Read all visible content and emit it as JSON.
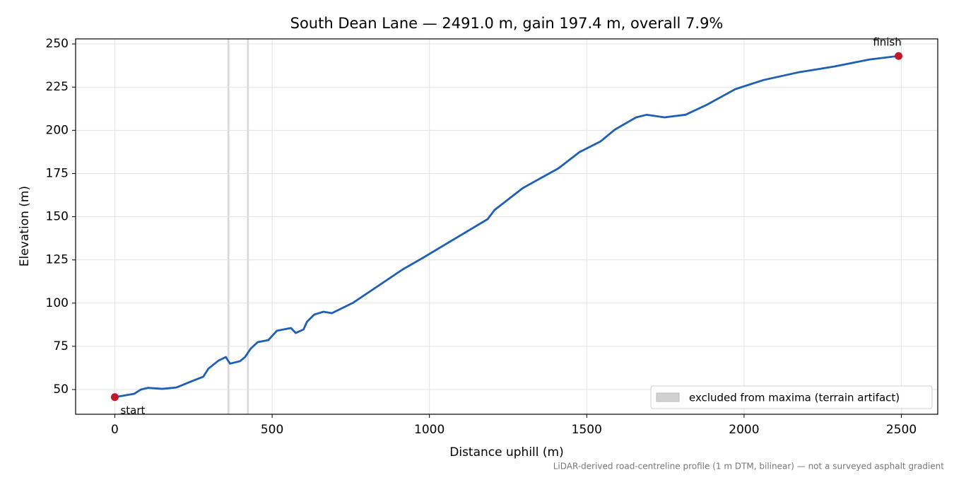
{
  "chart_data": {
    "type": "line",
    "title": "South Dean Lane — 2491.0 m, gain 197.4 m, overall 7.9%",
    "x_label": "Distance uphill (m)",
    "y_label": "Elevation (m)",
    "note": "LiDAR-derived road-centreline profile (1 m DTM, bilinear) — not a surveyed asphalt gradient",
    "x": [
      0,
      61,
      83,
      106,
      151,
      196,
      240,
      281,
      297,
      330,
      353,
      366,
      398,
      414,
      432,
      454,
      488,
      515,
      560,
      575,
      600,
      611,
      634,
      663,
      690,
      758,
      915,
      982,
      1185,
      1207,
      1297,
      1410,
      1477,
      1544,
      1590,
      1657,
      1691,
      1747,
      1814,
      1882,
      1972,
      2062,
      2174,
      2286,
      2399,
      2491
    ],
    "values": [
      45.6,
      47.5,
      50,
      51,
      50.4,
      51.2,
      54.5,
      57.4,
      62,
      66.8,
      68.8,
      65,
      66.4,
      68.8,
      73.7,
      77.4,
      78.6,
      84,
      85.6,
      82.7,
      84.8,
      89.3,
      93.4,
      95,
      94.2,
      100.3,
      119.5,
      126.5,
      148.6,
      153.9,
      166.6,
      178,
      187.4,
      193.6,
      200.5,
      207.5,
      209,
      207.5,
      209,
      214.8,
      223.8,
      229.1,
      233.6,
      236.9,
      241,
      243
    ],
    "color": "#1f5fb4",
    "markers": [
      {
        "label": "start",
        "x": 0,
        "y": 45.6
      },
      {
        "label": "finish",
        "x": 2491,
        "y": 243
      }
    ],
    "marker_color": "#c0182a",
    "excluded_spans": [
      [
        358,
        364
      ],
      [
        420,
        426
      ]
    ],
    "excluded_label": "excluded from maxima (terrain artifact)",
    "excluded_color": "#d0d0d0",
    "xlim": [
      -124.55,
      2615.55
    ],
    "ylim": [
      35.7,
      252.9
    ],
    "xticks": [
      0,
      500,
      1000,
      1500,
      2000,
      2500
    ],
    "yticks": [
      50,
      75,
      100,
      125,
      150,
      175,
      200,
      225,
      250
    ],
    "grid": true,
    "legend_loc": "lower right"
  }
}
